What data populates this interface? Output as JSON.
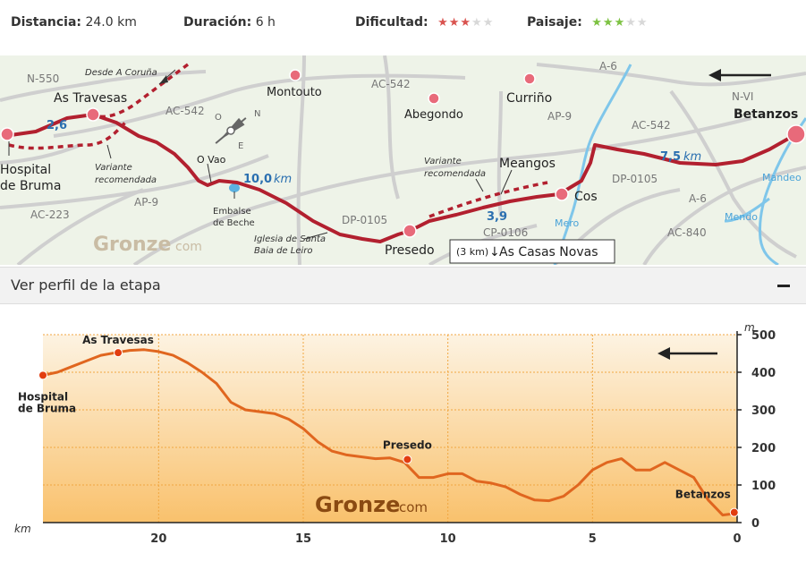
{
  "stats": {
    "distance_label": "Distancia:",
    "distance_value": "24.0 km",
    "duration_label": "Duración:",
    "duration_value": "6 h",
    "difficulty_label": "Dificultad:",
    "difficulty_rating": 3,
    "landscape_label": "Paisaje:",
    "landscape_rating": 3,
    "max_rating": 5,
    "difficulty_color": "#d9534f",
    "landscape_color": "#7dc242"
  },
  "map": {
    "towns": {
      "as_travesas": "As Travesas",
      "hospital_1": "Hospital",
      "hospital_2": "de Bruma",
      "montouto": "Montouto",
      "abegondo": "Abegondo",
      "currino": "Curriño",
      "betanzos": "Betanzos",
      "meangos": "Meangos",
      "cos": "Cos",
      "presedo": "Presedo",
      "o_vao": "O Vao"
    },
    "roads": {
      "n550": "N-550",
      "ac542a": "AC-542",
      "ac542b": "AC-542",
      "ac542c": "AC-542",
      "ac223": "AC-223",
      "ap9a": "AP-9",
      "ap9b": "AP-9",
      "a6a": "A-6",
      "a6b": "A-6",
      "nvi": "N-VI",
      "dp0105a": "DP-0105",
      "dp0105b": "DP-0105",
      "cp0106": "CP-0106",
      "ac840": "AC-840"
    },
    "rivers": {
      "mero": "Mero",
      "mendo": "Mendo",
      "mandeo": "Mandeo"
    },
    "notes": {
      "desde": "Desde A Coruña",
      "variante1_1": "Variante",
      "variante1_2": "recomendada",
      "variante2_1": "Variante",
      "variante2_2": "recomendada",
      "embalse_1": "Embalse",
      "embalse_2": "de Beche",
      "iglesia_1": "Iglesia de Santa",
      "iglesia_2": "Baia de Leiro"
    },
    "distances": {
      "d1": "2,6",
      "d2_num": "10,0",
      "d2_unit": "km",
      "d3": "3,9",
      "d4_num": "7,5",
      "d4_unit": "km"
    },
    "compass": {
      "n": "N",
      "o": "O",
      "e": "E"
    },
    "brand_main": "Gronze",
    "brand_sub": "com",
    "detour_km": "(3 km)",
    "detour_arrow": "↓",
    "detour_label": "As Casas Novas",
    "route_color": "#b2202f"
  },
  "toggle": {
    "label": "Ver perfil de la etapa",
    "action": "−"
  },
  "chart_data": {
    "type": "area",
    "x_unit": "km",
    "y_unit": "m",
    "xlim": [
      24,
      0
    ],
    "ylim": [
      0,
      500
    ],
    "x_ticks": [
      20,
      15,
      10,
      5,
      0
    ],
    "y_ticks": [
      0,
      100,
      200,
      300,
      400,
      500
    ],
    "grid": true,
    "direction_arrow": "left",
    "x": [
      24.0,
      23.5,
      23.0,
      22.5,
      22.0,
      21.5,
      21.0,
      20.5,
      20.0,
      19.5,
      19.0,
      18.5,
      18.0,
      17.5,
      17.0,
      16.5,
      16.0,
      15.5,
      15.0,
      14.5,
      14.0,
      13.5,
      13.0,
      12.5,
      12.0,
      11.5,
      11.0,
      10.5,
      10.0,
      9.5,
      9.0,
      8.5,
      8.0,
      7.5,
      7.0,
      6.5,
      6.0,
      5.5,
      5.0,
      4.5,
      4.0,
      3.5,
      3.0,
      2.5,
      2.0,
      1.5,
      1.0,
      0.5,
      0.0
    ],
    "y": [
      392,
      400,
      415,
      430,
      445,
      452,
      458,
      460,
      455,
      445,
      425,
      400,
      370,
      320,
      300,
      295,
      290,
      275,
      250,
      215,
      190,
      180,
      175,
      170,
      172,
      160,
      120,
      120,
      130,
      130,
      110,
      105,
      95,
      75,
      60,
      58,
      70,
      100,
      140,
      160,
      170,
      140,
      140,
      160,
      140,
      120,
      60,
      20,
      25
    ],
    "points": [
      {
        "name": "Hospital de Bruma",
        "label_1": "Hospital",
        "label_2": "de Bruma",
        "x": 24.0,
        "y": 392
      },
      {
        "name": "As Travesas",
        "label_1": "As Travesas",
        "label_2": "",
        "x": 21.4,
        "y": 452
      },
      {
        "name": "Presedo",
        "label_1": "Presedo",
        "label_2": "",
        "x": 11.4,
        "y": 168
      },
      {
        "name": "Betanzos",
        "label_1": "Betanzos",
        "label_2": "",
        "x": 0.1,
        "y": 27
      }
    ],
    "brand_main": "Gronze",
    "brand_sub": "com",
    "line_color": "#e0661f",
    "marker_color": "#e23d10"
  }
}
